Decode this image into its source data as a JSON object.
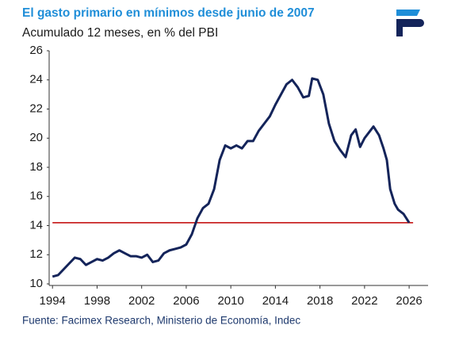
{
  "chart_data": {
    "type": "line",
    "title": "El gasto primario en mínimos desde junio de 2007",
    "subtitle": "Acumulado 12 meses, en % del PBI",
    "source": "Fuente: Facimex Research, Ministerio de Economía, Indec",
    "series": [
      {
        "name": "Gasto primario",
        "color": "#14245a",
        "x": [
          1994.0,
          1994.5,
          1995.0,
          1995.5,
          1996.0,
          1996.5,
          1997.0,
          1997.5,
          1998.0,
          1998.5,
          1999.0,
          1999.5,
          2000.0,
          2000.5,
          2001.0,
          2001.5,
          2002.0,
          2002.5,
          2003.0,
          2003.5,
          2004.0,
          2004.5,
          2005.0,
          2005.5,
          2006.0,
          2006.5,
          2007.0,
          2007.5,
          2008.0,
          2008.5,
          2009.0,
          2009.5,
          2010.0,
          2010.5,
          2011.0,
          2011.5,
          2012.0,
          2012.5,
          2013.0,
          2013.5,
          2014.0,
          2014.5,
          2015.0,
          2015.5,
          2016.0,
          2016.5,
          2017.0,
          2017.3,
          2017.8,
          2018.3,
          2018.8,
          2019.3,
          2019.8,
          2020.3,
          2020.8,
          2021.2,
          2021.6,
          2022.0,
          2022.5,
          2022.8,
          2023.3,
          2023.7,
          2024.0,
          2024.3,
          2024.7,
          2025.0,
          2025.5,
          2026.0
        ],
        "values": [
          10.5,
          10.6,
          11.0,
          11.4,
          11.8,
          11.7,
          11.3,
          11.5,
          11.7,
          11.6,
          11.8,
          12.1,
          12.3,
          12.1,
          11.9,
          11.9,
          11.8,
          12.0,
          11.5,
          11.6,
          12.1,
          12.3,
          12.4,
          12.5,
          12.7,
          13.4,
          14.5,
          15.2,
          15.5,
          16.5,
          18.5,
          19.5,
          19.3,
          19.5,
          19.3,
          19.8,
          19.8,
          20.5,
          21.0,
          21.5,
          22.3,
          23.0,
          23.7,
          24.0,
          23.5,
          22.8,
          22.9,
          24.1,
          24.0,
          23.0,
          21.0,
          19.8,
          19.2,
          18.7,
          20.2,
          20.6,
          19.4,
          20.0,
          20.5,
          20.8,
          20.2,
          19.3,
          18.5,
          16.5,
          15.5,
          15.1,
          14.8,
          14.2
        ]
      }
    ],
    "reference_line": {
      "value": 14.2,
      "color": "#c00000"
    },
    "xlim": [
      1993.7,
      2027.7
    ],
    "xticks": [
      1994,
      1998,
      2002,
      2006,
      2010,
      2014,
      2018,
      2022,
      2026
    ],
    "ylim": [
      10,
      26
    ],
    "yticks": [
      10,
      12,
      14,
      16,
      18,
      20,
      22,
      24,
      26
    ],
    "grid": false
  }
}
